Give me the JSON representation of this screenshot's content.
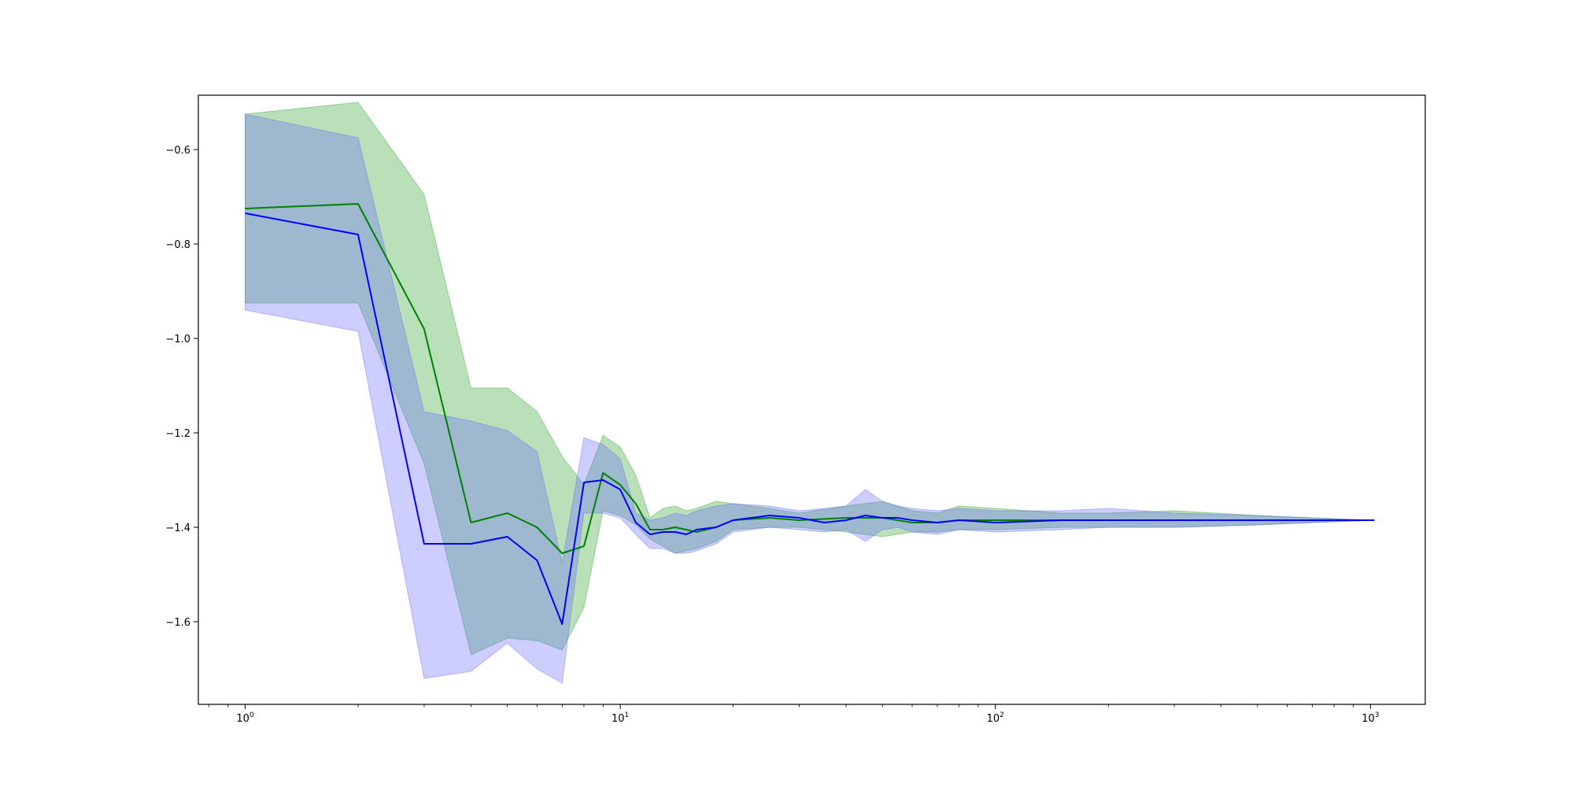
{
  "chart_data": {
    "type": "line",
    "xscale": "log",
    "xlim": [
      0.75,
      1400
    ],
    "ylim": [
      -1.775,
      -0.485
    ],
    "grid": false,
    "x_ticks": [
      {
        "value": 1,
        "base": "10",
        "exp": "0"
      },
      {
        "value": 10,
        "base": "10",
        "exp": "1"
      },
      {
        "value": 100,
        "base": "10",
        "exp": "2"
      },
      {
        "value": 1000,
        "base": "10",
        "exp": "3"
      }
    ],
    "y_ticks": [
      {
        "value": -0.6,
        "label": "−0.6"
      },
      {
        "value": -0.8,
        "label": "−0.8"
      },
      {
        "value": -1.0,
        "label": "−1.0"
      },
      {
        "value": -1.2,
        "label": "−1.2"
      },
      {
        "value": -1.4,
        "label": "−1.4"
      },
      {
        "value": -1.6,
        "label": "−1.6"
      }
    ],
    "series": [
      {
        "color": "#008000",
        "band_color": "#2ca02c",
        "x": [
          1,
          2,
          3,
          4,
          5,
          6,
          7,
          8,
          9,
          10,
          11,
          12,
          13,
          14,
          15,
          16,
          18,
          20,
          25,
          30,
          40,
          50,
          60,
          70,
          80,
          100,
          150,
          200,
          300,
          500,
          700,
          1024
        ],
        "y": [
          -0.725,
          -0.715,
          -0.98,
          -1.39,
          -1.37,
          -1.4,
          -1.455,
          -1.44,
          -1.285,
          -1.31,
          -1.35,
          -1.405,
          -1.405,
          -1.4,
          -1.405,
          -1.41,
          -1.4,
          -1.385,
          -1.38,
          -1.385,
          -1.38,
          -1.38,
          -1.39,
          -1.39,
          -1.385,
          -1.385,
          -1.385,
          -1.385,
          -1.385,
          -1.385,
          -1.385,
          -1.385
        ],
        "lower": [
          -0.925,
          -0.925,
          -1.265,
          -1.67,
          -1.635,
          -1.64,
          -1.66,
          -1.57,
          -1.365,
          -1.375,
          -1.395,
          -1.425,
          -1.44,
          -1.455,
          -1.45,
          -1.445,
          -1.43,
          -1.405,
          -1.4,
          -1.4,
          -1.41,
          -1.42,
          -1.41,
          -1.41,
          -1.405,
          -1.405,
          -1.4,
          -1.4,
          -1.4,
          -1.395,
          -1.39,
          -1.385
        ],
        "upper": [
          -0.525,
          -0.5,
          -0.695,
          -1.105,
          -1.105,
          -1.155,
          -1.25,
          -1.31,
          -1.205,
          -1.23,
          -1.29,
          -1.38,
          -1.36,
          -1.355,
          -1.365,
          -1.36,
          -1.345,
          -1.35,
          -1.36,
          -1.37,
          -1.355,
          -1.345,
          -1.365,
          -1.37,
          -1.355,
          -1.36,
          -1.37,
          -1.37,
          -1.365,
          -1.375,
          -1.38,
          -1.385
        ]
      },
      {
        "color": "#0000ff",
        "band_color": "#6666ff",
        "x": [
          1,
          2,
          3,
          4,
          5,
          6,
          7,
          8,
          9,
          10,
          11,
          12,
          13,
          14,
          15,
          16,
          18,
          20,
          25,
          30,
          35,
          40,
          45,
          50,
          55,
          60,
          70,
          80,
          100,
          150,
          200,
          300,
          500,
          700,
          1024
        ],
        "y": [
          -0.735,
          -0.78,
          -1.435,
          -1.435,
          -1.42,
          -1.47,
          -1.605,
          -1.305,
          -1.3,
          -1.32,
          -1.39,
          -1.415,
          -1.41,
          -1.41,
          -1.415,
          -1.405,
          -1.4,
          -1.385,
          -1.375,
          -1.38,
          -1.39,
          -1.385,
          -1.375,
          -1.38,
          -1.38,
          -1.385,
          -1.39,
          -1.385,
          -1.39,
          -1.385,
          -1.385,
          -1.385,
          -1.385,
          -1.385,
          -1.385
        ],
        "lower": [
          -0.94,
          -0.985,
          -1.72,
          -1.705,
          -1.645,
          -1.7,
          -1.73,
          -1.37,
          -1.37,
          -1.38,
          -1.415,
          -1.445,
          -1.445,
          -1.455,
          -1.455,
          -1.45,
          -1.435,
          -1.41,
          -1.4,
          -1.405,
          -1.41,
          -1.405,
          -1.43,
          -1.405,
          -1.4,
          -1.41,
          -1.415,
          -1.405,
          -1.41,
          -1.405,
          -1.4,
          -1.4,
          -1.395,
          -1.39,
          -1.385
        ],
        "upper": [
          -0.525,
          -0.575,
          -1.155,
          -1.175,
          -1.195,
          -1.24,
          -1.475,
          -1.21,
          -1.225,
          -1.255,
          -1.37,
          -1.385,
          -1.38,
          -1.37,
          -1.375,
          -1.365,
          -1.355,
          -1.35,
          -1.355,
          -1.365,
          -1.36,
          -1.355,
          -1.32,
          -1.345,
          -1.355,
          -1.36,
          -1.365,
          -1.36,
          -1.365,
          -1.365,
          -1.36,
          -1.37,
          -1.375,
          -1.38,
          -1.385
        ]
      }
    ]
  }
}
